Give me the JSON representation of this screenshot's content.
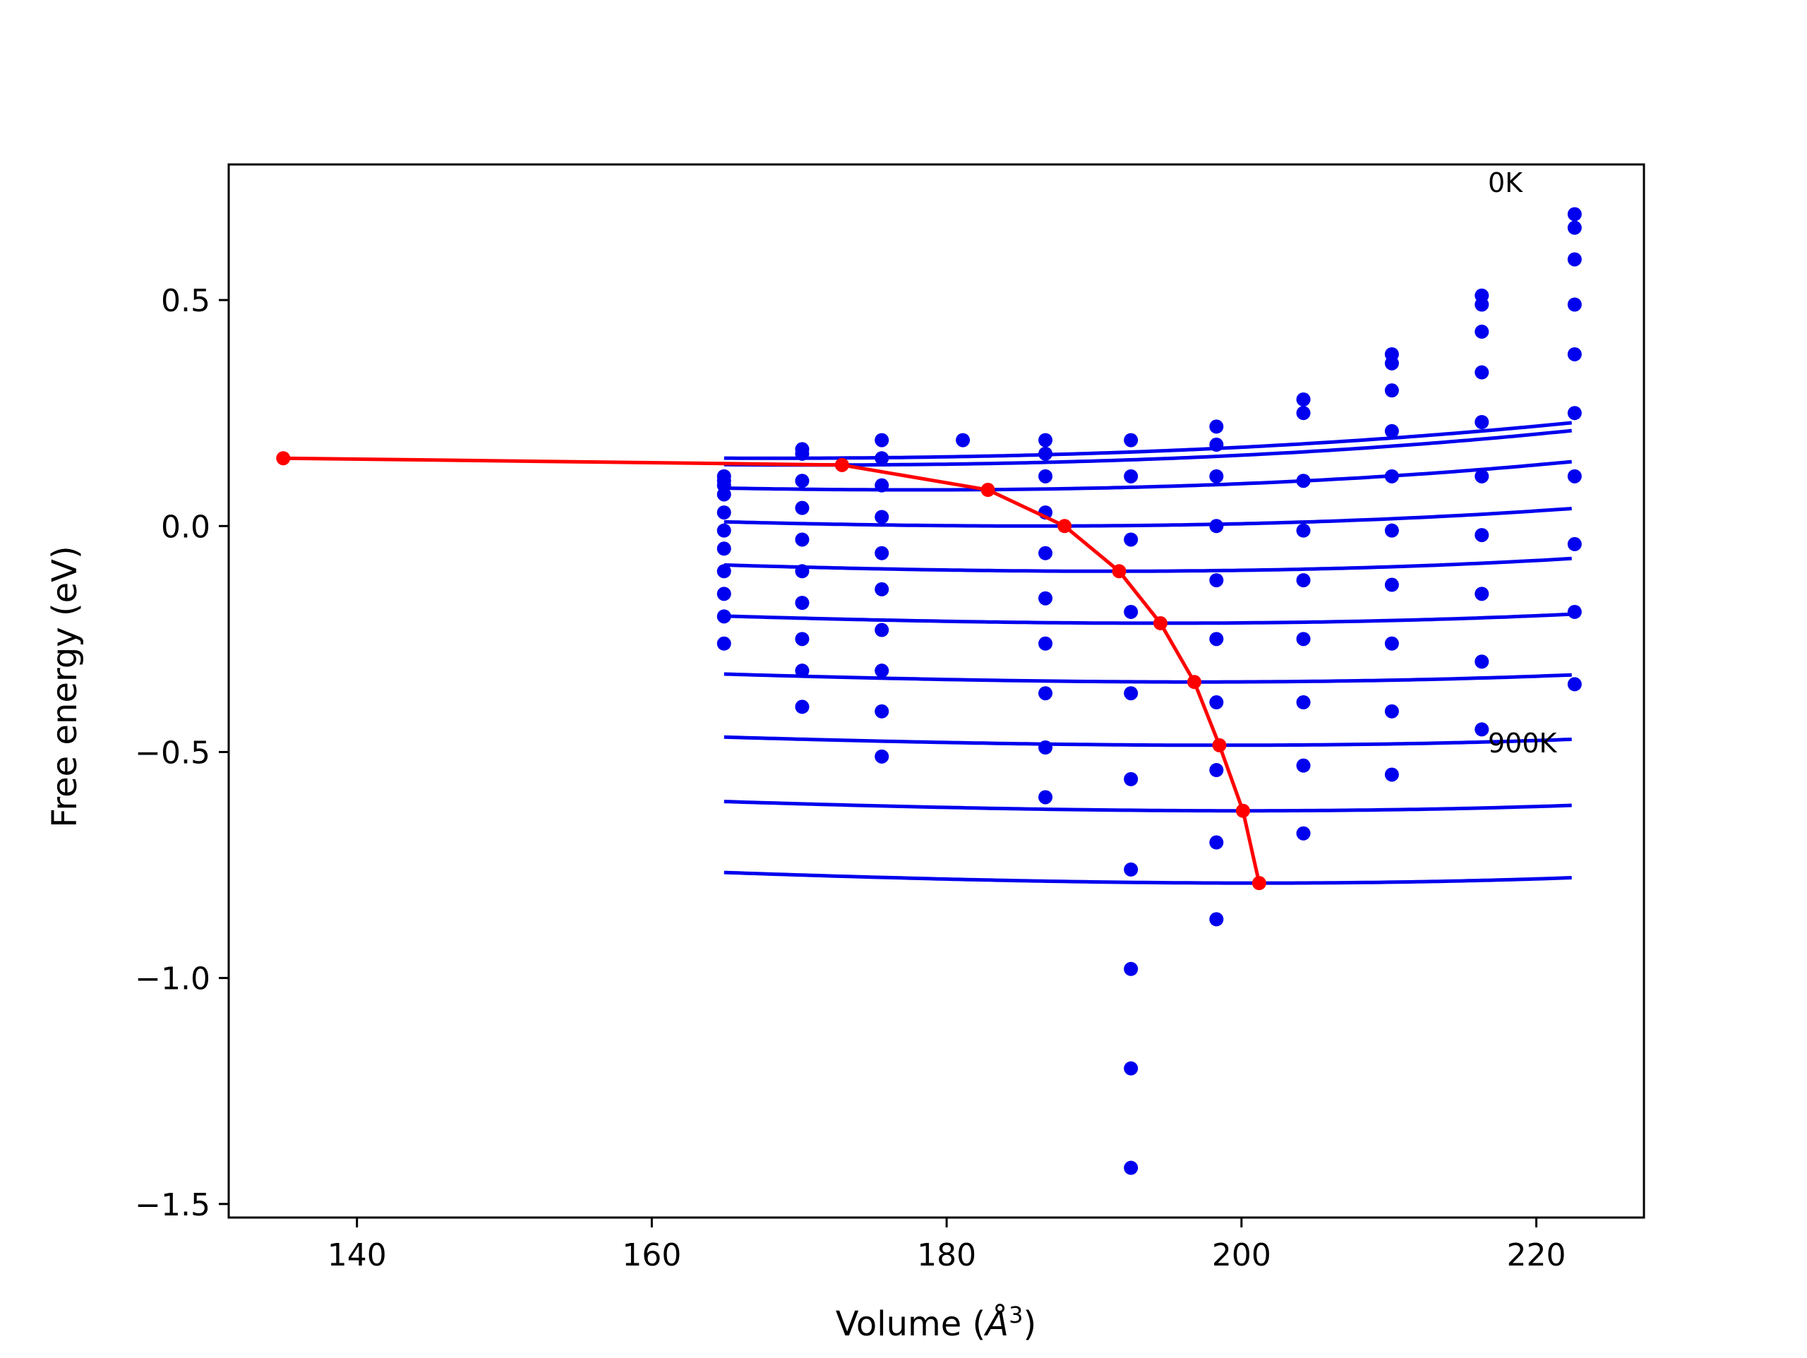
{
  "chart_data": {
    "type": "line",
    "title": "",
    "xlabel": "Volume (",
    "xlabel_unit": "Å",
    "xlabel_sup": "3",
    "xlabel_close": ")",
    "ylabel": "Free energy (eV)",
    "xlim": [
      131.3,
      227.3
    ],
    "ylim": [
      -1.53,
      0.8
    ],
    "xticks": [
      140,
      160,
      180,
      200,
      220
    ],
    "xtick_labels": [
      "140",
      "160",
      "180",
      "200",
      "220"
    ],
    "yticks": [
      0.5,
      0.0,
      -0.5,
      -1.0,
      -1.5
    ],
    "ytick_labels": [
      "0.5",
      "0.0",
      "−0.5",
      "−1.0",
      "−1.5"
    ],
    "grid": false,
    "annotations": [
      {
        "text": "0K",
        "x": 216.5,
        "y": 0.74
      },
      {
        "text": "900K",
        "x": 216.5,
        "y": -0.5
      }
    ],
    "colors": {
      "curves": "#0000ee",
      "path": "#ff0000"
    },
    "x_points": [
      164.9,
      170.2,
      175.6,
      181.1,
      186.7,
      192.5,
      198.3,
      204.2,
      210.2,
      216.3,
      222.6
    ],
    "series": [
      {
        "values": [
          0.11,
          0.17,
          0.19,
          0.19,
          0.19,
          0.19,
          0.22,
          0.28,
          0.38,
          0.51,
          0.69
        ]
      },
      {
        "values": [
          0.1,
          0.16,
          0.15,
          null,
          0.16,
          null,
          0.18,
          0.25,
          0.36,
          0.49,
          0.66
        ]
      },
      {
        "values": [
          0.09,
          0.1,
          0.09,
          null,
          0.11,
          0.11,
          0.11,
          0.1,
          0.3,
          0.43,
          0.59
        ]
      },
      {
        "values": [
          0.07,
          0.04,
          0.02,
          null,
          0.03,
          -0.03,
          0.0,
          -0.01,
          0.21,
          0.34,
          0.49
        ]
      },
      {
        "values": [
          0.03,
          -0.03,
          -0.06,
          null,
          -0.06,
          null,
          -0.12,
          -0.12,
          0.11,
          0.23,
          0.38
        ]
      },
      {
        "values": [
          -0.01,
          -0.1,
          -0.14,
          null,
          -0.16,
          -0.19,
          -0.25,
          -0.25,
          -0.01,
          0.11,
          0.25
        ]
      },
      {
        "values": [
          -0.05,
          -0.17,
          -0.23,
          null,
          -0.26,
          null,
          -0.39,
          -0.39,
          -0.13,
          -0.02,
          0.11
        ]
      },
      {
        "values": [
          -0.1,
          -0.25,
          -0.32,
          null,
          -0.37,
          -0.37,
          -0.54,
          -0.53,
          -0.26,
          -0.15,
          -0.04
        ]
      },
      {
        "values": [
          -0.15,
          -0.32,
          -0.41,
          null,
          -0.49,
          -0.56,
          -0.7,
          -0.68,
          -0.41,
          -0.3,
          -0.19
        ]
      },
      {
        "values": [
          -0.2,
          -0.4,
          -0.51,
          null,
          -0.6,
          -0.76,
          -0.87,
          null,
          -0.55,
          -0.45,
          -0.35
        ]
      },
      {
        "values": [
          -0.26,
          null,
          null,
          null,
          null,
          -0.98,
          null,
          null,
          null,
          null,
          null
        ]
      },
      {
        "values": [
          null,
          null,
          null,
          null,
          null,
          -1.2,
          null,
          null,
          null,
          null,
          null
        ]
      },
      {
        "values": [
          null,
          null,
          null,
          null,
          null,
          -1.42,
          null,
          null,
          null,
          null,
          null
        ]
      }
    ],
    "fit_curves": [
      {
        "v0": 168.0,
        "b": 2e-05,
        "e0": 0.15,
        "xmin": 164.9
      },
      {
        "v0": 171.0,
        "b": 2.2e-05,
        "e0": 0.135,
        "xmin": 164.9
      },
      {
        "v0": 178.0,
        "b": 2.5e-05,
        "e0": 0.08,
        "xmin": 164.9
      },
      {
        "v0": 186.0,
        "b": 2.4e-05,
        "e0": 0.0,
        "xmin": 164.9
      },
      {
        "v0": 191.0,
        "b": 2.4e-05,
        "e0": -0.1,
        "xmin": 164.9
      },
      {
        "v0": 194.5,
        "b": 2.2e-05,
        "e0": -0.215,
        "xmin": 164.9
      },
      {
        "v0": 197.0,
        "b": 2.1e-05,
        "e0": -0.345,
        "xmin": 164.9
      },
      {
        "v0": 198.5,
        "b": 2e-05,
        "e0": -0.485,
        "xmin": 164.9
      },
      {
        "v0": 200.0,
        "b": 2.1e-05,
        "e0": -0.63,
        "xmin": 164.9
      },
      {
        "v0": 201.0,
        "b": 2.3e-05,
        "e0": -0.79,
        "xmin": 164.9
      }
    ],
    "min_path": {
      "x": [
        135.0,
        172.9,
        182.8,
        188.0,
        191.7,
        194.5,
        196.8,
        198.5,
        200.1,
        201.2
      ],
      "y": [
        0.15,
        0.135,
        0.08,
        0.0,
        -0.1,
        -0.215,
        -0.345,
        -0.485,
        -0.63,
        -0.79
      ]
    }
  }
}
